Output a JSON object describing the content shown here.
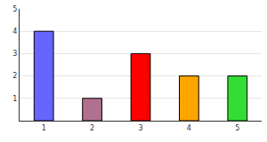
{
  "chart_data": {
    "type": "bar",
    "categories": [
      "1",
      "2",
      "3",
      "4",
      "5"
    ],
    "values": [
      4,
      1,
      3,
      2,
      2
    ],
    "colors": [
      "#6666ff",
      "#b07090",
      "#ff0000",
      "#ffa500",
      "#33dd33"
    ],
    "ylim": [
      0,
      5
    ],
    "yticks": [
      1,
      2,
      3,
      4,
      5
    ],
    "grid": true
  }
}
